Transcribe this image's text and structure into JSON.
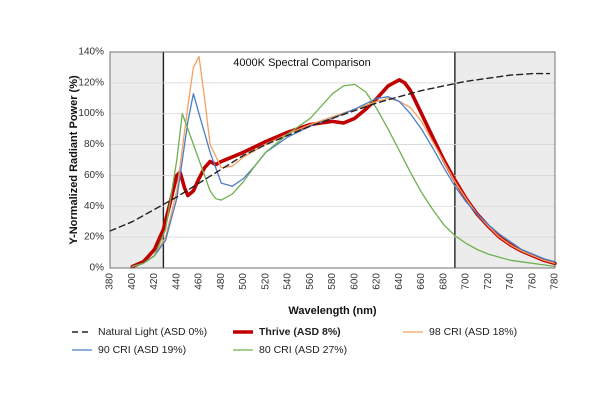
{
  "chart_data": {
    "type": "line",
    "title": "4000K Spectral Comparison",
    "xlabel": "Wavelength (nm)",
    "ylabel": "Y-Normalized Radiant Power (%)",
    "xlim": [
      380,
      780
    ],
    "ylim": [
      0,
      140
    ],
    "x_ticks": [
      "380",
      "400",
      "420",
      "440",
      "460",
      "480",
      "500",
      "520",
      "540",
      "560",
      "580",
      "600",
      "620",
      "640",
      "660",
      "680",
      "700",
      "720",
      "740",
      "760",
      "780"
    ],
    "y_ticks": [
      "0%",
      "20%",
      "40%",
      "60%",
      "80%",
      "100%",
      "120%",
      "140%"
    ],
    "shaded_regions": [
      [
        380,
        428
      ],
      [
        690,
        780
      ]
    ],
    "legend_position": "bottom",
    "series": [
      {
        "name": "Natural Light (ASD 0%)",
        "color": "#222222",
        "style": "dashed",
        "points": [
          [
            380,
            24
          ],
          [
            400,
            30
          ],
          [
            420,
            38
          ],
          [
            440,
            46
          ],
          [
            460,
            55
          ],
          [
            480,
            64
          ],
          [
            500,
            73
          ],
          [
            520,
            80
          ],
          [
            540,
            86
          ],
          [
            560,
            92
          ],
          [
            580,
            97
          ],
          [
            600,
            102
          ],
          [
            620,
            107
          ],
          [
            640,
            111
          ],
          [
            660,
            115
          ],
          [
            680,
            118
          ],
          [
            700,
            121
          ],
          [
            720,
            123
          ],
          [
            740,
            125
          ],
          [
            760,
            126
          ],
          [
            775,
            126
          ]
        ]
      },
      {
        "name": "Thrive (ASD 8%)",
        "color": "#c00000",
        "style": "thick",
        "points": [
          [
            400,
            1
          ],
          [
            410,
            4
          ],
          [
            420,
            12
          ],
          [
            428,
            25
          ],
          [
            435,
            45
          ],
          [
            440,
            60
          ],
          [
            443,
            62
          ],
          [
            447,
            52
          ],
          [
            450,
            47
          ],
          [
            455,
            50
          ],
          [
            460,
            58
          ],
          [
            465,
            65
          ],
          [
            470,
            69
          ],
          [
            475,
            67
          ],
          [
            480,
            69
          ],
          [
            490,
            72
          ],
          [
            500,
            75
          ],
          [
            520,
            82
          ],
          [
            540,
            88
          ],
          [
            560,
            93
          ],
          [
            580,
            95
          ],
          [
            590,
            94
          ],
          [
            600,
            97
          ],
          [
            610,
            103
          ],
          [
            620,
            110
          ],
          [
            630,
            118
          ],
          [
            640,
            122
          ],
          [
            645,
            120
          ],
          [
            650,
            115
          ],
          [
            660,
            100
          ],
          [
            670,
            85
          ],
          [
            680,
            70
          ],
          [
            690,
            57
          ],
          [
            700,
            45
          ],
          [
            710,
            35
          ],
          [
            720,
            27
          ],
          [
            730,
            20
          ],
          [
            740,
            15
          ],
          [
            750,
            11
          ],
          [
            760,
            8
          ],
          [
            770,
            5
          ],
          [
            780,
            3
          ]
        ]
      },
      {
        "name": "98 CRI (ASD 18%)",
        "color": "#f4a060",
        "style": "solid",
        "points": [
          [
            400,
            1
          ],
          [
            410,
            3
          ],
          [
            420,
            8
          ],
          [
            430,
            20
          ],
          [
            440,
            50
          ],
          [
            450,
            105
          ],
          [
            455,
            130
          ],
          [
            460,
            137
          ],
          [
            465,
            110
          ],
          [
            470,
            80
          ],
          [
            480,
            65
          ],
          [
            490,
            66
          ],
          [
            500,
            72
          ],
          [
            520,
            80
          ],
          [
            540,
            87
          ],
          [
            560,
            93
          ],
          [
            580,
            98
          ],
          [
            600,
            103
          ],
          [
            620,
            108
          ],
          [
            630,
            110
          ],
          [
            640,
            108
          ],
          [
            650,
            104
          ],
          [
            660,
            95
          ],
          [
            670,
            82
          ],
          [
            680,
            69
          ],
          [
            690,
            56
          ],
          [
            700,
            45
          ],
          [
            710,
            35
          ],
          [
            720,
            27
          ],
          [
            730,
            20
          ],
          [
            740,
            15
          ],
          [
            750,
            11
          ],
          [
            760,
            8
          ],
          [
            770,
            5
          ],
          [
            780,
            3
          ]
        ]
      },
      {
        "name": "90 CRI (ASD 19%)",
        "color": "#4a7ec8",
        "style": "solid",
        "points": [
          [
            400,
            1
          ],
          [
            410,
            3
          ],
          [
            420,
            8
          ],
          [
            430,
            18
          ],
          [
            440,
            45
          ],
          [
            450,
            95
          ],
          [
            455,
            113
          ],
          [
            460,
            100
          ],
          [
            470,
            75
          ],
          [
            480,
            55
          ],
          [
            490,
            53
          ],
          [
            500,
            58
          ],
          [
            510,
            66
          ],
          [
            520,
            75
          ],
          [
            540,
            85
          ],
          [
            560,
            92
          ],
          [
            580,
            97
          ],
          [
            600,
            103
          ],
          [
            620,
            110
          ],
          [
            630,
            111
          ],
          [
            640,
            108
          ],
          [
            650,
            100
          ],
          [
            660,
            90
          ],
          [
            670,
            78
          ],
          [
            680,
            65
          ],
          [
            690,
            53
          ],
          [
            700,
            43
          ],
          [
            710,
            35
          ],
          [
            720,
            28
          ],
          [
            730,
            22
          ],
          [
            740,
            17
          ],
          [
            750,
            12
          ],
          [
            760,
            9
          ],
          [
            770,
            6
          ],
          [
            780,
            4
          ]
        ]
      },
      {
        "name": "80 CRI (ASD 27%)",
        "color": "#70b050",
        "style": "solid",
        "points": [
          [
            400,
            1
          ],
          [
            410,
            3
          ],
          [
            420,
            8
          ],
          [
            430,
            25
          ],
          [
            440,
            70
          ],
          [
            445,
            100
          ],
          [
            450,
            90
          ],
          [
            460,
            70
          ],
          [
            470,
            50
          ],
          [
            475,
            45
          ],
          [
            480,
            44
          ],
          [
            490,
            48
          ],
          [
            500,
            56
          ],
          [
            510,
            66
          ],
          [
            520,
            75
          ],
          [
            540,
            87
          ],
          [
            560,
            97
          ],
          [
            570,
            105
          ],
          [
            580,
            113
          ],
          [
            590,
            118
          ],
          [
            600,
            119
          ],
          [
            610,
            114
          ],
          [
            620,
            103
          ],
          [
            630,
            90
          ],
          [
            640,
            76
          ],
          [
            650,
            62
          ],
          [
            660,
            49
          ],
          [
            670,
            38
          ],
          [
            680,
            28
          ],
          [
            690,
            21
          ],
          [
            700,
            16
          ],
          [
            710,
            12
          ],
          [
            720,
            9
          ],
          [
            730,
            7
          ],
          [
            740,
            5
          ],
          [
            750,
            4
          ],
          [
            760,
            3
          ],
          [
            770,
            2
          ],
          [
            780,
            1
          ]
        ]
      }
    ]
  }
}
